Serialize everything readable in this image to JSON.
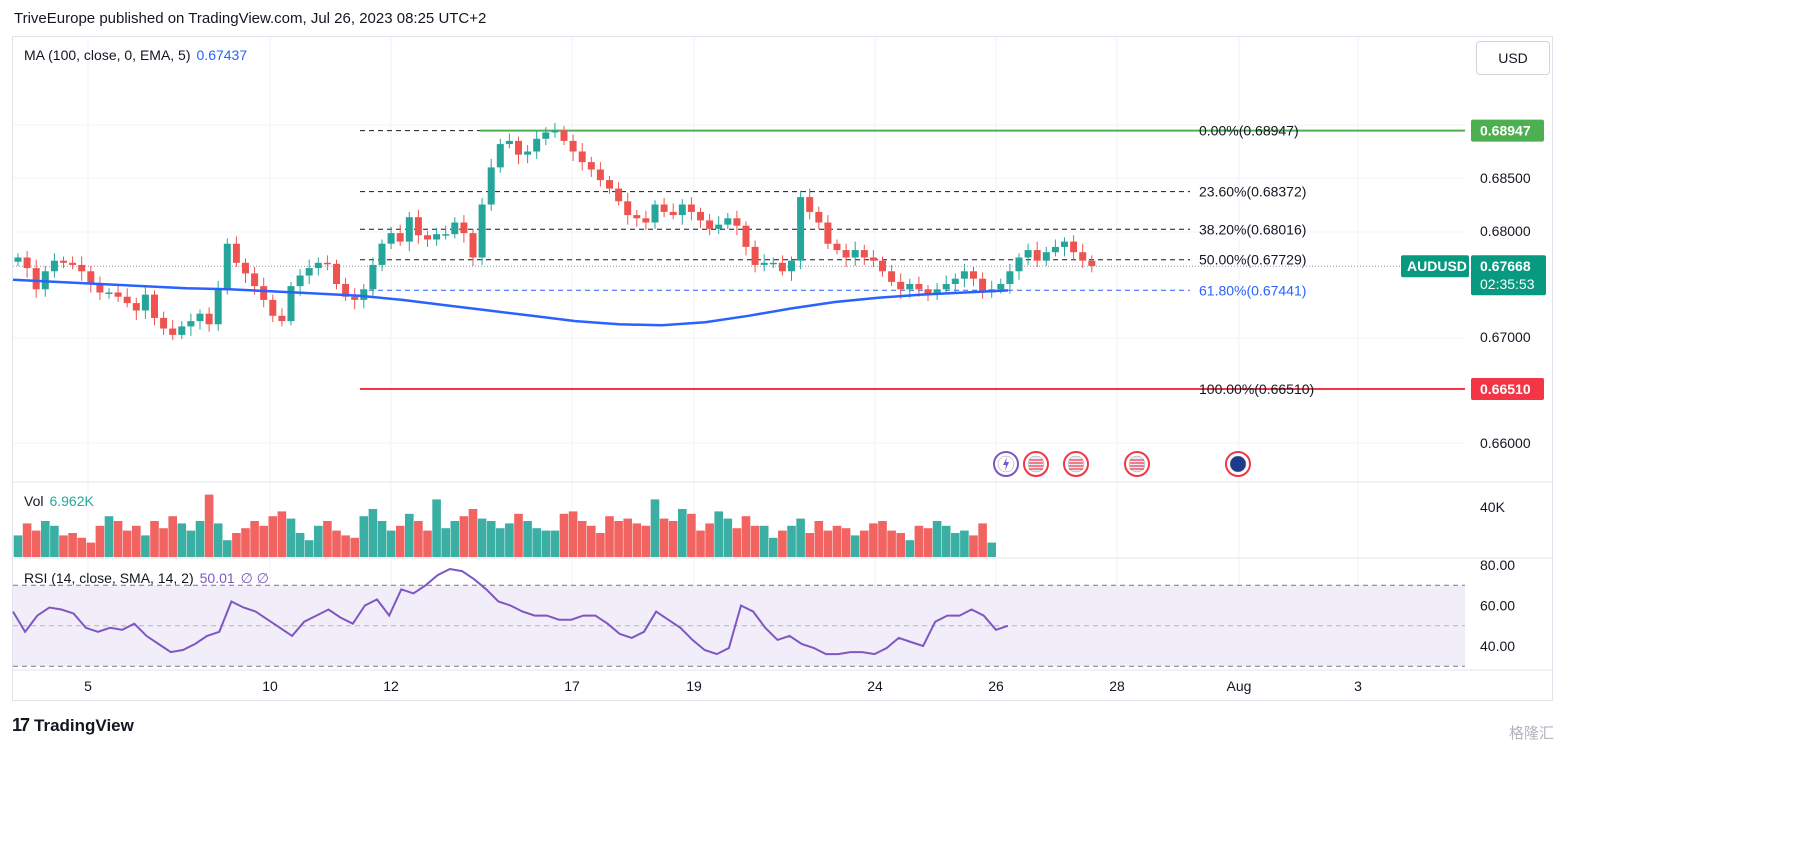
{
  "header": {
    "published": "TriveEurope published on TradingView.com, Jul 26, 2023 08:25 UTC+2"
  },
  "currency_button": "USD",
  "indicators": {
    "ma_label": "MA (100, close, 0, EMA, 5)",
    "ma_value": "0.67437",
    "vol_label": "Vol",
    "vol_value": "6.962K",
    "rsi_label": "RSI (14, close, SMA, 14, 2)",
    "rsi_value": "50.01",
    "rsi_extra": "∅  ∅"
  },
  "footer": {
    "brand": "TradingView",
    "watermark": "格隆汇"
  },
  "colors": {
    "up": "#26a69a",
    "down": "#ef5350",
    "ma": "#2962ff",
    "fib_top": "#4caf50",
    "fib_bottom": "#f23645",
    "rsi": "#7e57c2",
    "rsi_band": "#ede7f6",
    "price_tag": "#089981"
  },
  "chart_data": {
    "type": "candlestick",
    "symbol": "AUDUSD",
    "last_price": "0.67668",
    "countdown": "02:35:53",
    "price_axis_ticks": [
      "0.68500",
      "0.68000",
      "0.67000",
      "0.66000"
    ],
    "price_ylim": [
      0.6555,
      0.6935
    ],
    "x_tick_labels": [
      "5",
      "10",
      "12",
      "17",
      "19",
      "24",
      "26",
      "28",
      "Aug",
      "3"
    ],
    "fibonacci": [
      {
        "label": "0.00%(0.68947)",
        "price": 0.68947
      },
      {
        "label": "23.60%(0.68372)",
        "price": 0.68372
      },
      {
        "label": "38.20%(0.68016)",
        "price": 0.68016
      },
      {
        "label": "50.00%(0.67729)",
        "price": 0.67729
      },
      {
        "label": "61.80%(0.67441)",
        "price": 0.67441
      },
      {
        "label": "100.00%(0.66510)",
        "price": 0.6651
      }
    ],
    "fib_price_tags": [
      "0.68947",
      "0.66510"
    ],
    "candles_close": [
      0.6775,
      0.6765,
      0.6745,
      0.6762,
      0.6772,
      0.677,
      0.6768,
      0.6762,
      0.675,
      0.6742,
      0.6742,
      0.6738,
      0.6732,
      0.6725,
      0.674,
      0.6718,
      0.6708,
      0.6702,
      0.671,
      0.6715,
      0.6722,
      0.6712,
      0.6745,
      0.6788,
      0.677,
      0.676,
      0.6748,
      0.6735,
      0.672,
      0.6715,
      0.6748,
      0.6758,
      0.6765,
      0.677,
      0.6769,
      0.675,
      0.6738,
      0.6735,
      0.6745,
      0.6768,
      0.6788,
      0.6798,
      0.679,
      0.6813,
      0.6796,
      0.6792,
      0.6797,
      0.6797,
      0.6808,
      0.6798,
      0.6775,
      0.6825,
      0.686,
      0.6882,
      0.6885,
      0.6872,
      0.6875,
      0.6887,
      0.6893,
      0.6895,
      0.6885,
      0.6875,
      0.6865,
      0.6858,
      0.6848,
      0.684,
      0.6828,
      0.6815,
      0.6812,
      0.6808,
      0.6825,
      0.6818,
      0.6815,
      0.6825,
      0.6818,
      0.681,
      0.6802,
      0.6806,
      0.6812,
      0.6805,
      0.6785,
      0.6768,
      0.677,
      0.677,
      0.6762,
      0.6772,
      0.6832,
      0.6818,
      0.6808,
      0.6788,
      0.6782,
      0.6775,
      0.6782,
      0.6775,
      0.6772,
      0.6762,
      0.6752,
      0.6745,
      0.675,
      0.6745,
      0.674,
      0.6745,
      0.675,
      0.6755,
      0.6762,
      0.6755,
      0.6742,
      0.6745,
      0.675,
      0.6762,
      0.6775,
      0.6782,
      0.6772,
      0.678,
      0.6785,
      0.679,
      0.678,
      0.6772,
      0.6767
    ],
    "ma_series": [
      0.6754,
      0.6752,
      0.675,
      0.6748,
      0.6746,
      0.6745,
      0.6743,
      0.6741,
      0.6739,
      0.6735,
      0.673,
      0.6725,
      0.672,
      0.6715,
      0.6712,
      0.6711,
      0.6714,
      0.672,
      0.6727,
      0.6733,
      0.6737,
      0.674,
      0.6742,
      0.6744
    ],
    "volume": {
      "axis_tick": "40K",
      "values": [
        18,
        28,
        22,
        30,
        26,
        18,
        20,
        16,
        12,
        26,
        34,
        30,
        22,
        26,
        18,
        30,
        24,
        34,
        28,
        22,
        30,
        52,
        28,
        14,
        20,
        24,
        30,
        26,
        34,
        38,
        32,
        20,
        14,
        26,
        30,
        22,
        18,
        16,
        34,
        40,
        30,
        22,
        26,
        36,
        30,
        22,
        48,
        24,
        30,
        34,
        40,
        32,
        30,
        24,
        28,
        36,
        30,
        24,
        22,
        22,
        36,
        38,
        30,
        26,
        20,
        34,
        30,
        32,
        28,
        26,
        48,
        32,
        30,
        40,
        36,
        22,
        28,
        38,
        32,
        24,
        34,
        26,
        26,
        16,
        22,
        26,
        32,
        20,
        30,
        22,
        26,
        24,
        18,
        22,
        28,
        30,
        22,
        20,
        14,
        26,
        24,
        30,
        26,
        20,
        22,
        18,
        28,
        12
      ]
    },
    "rsi": {
      "axis_ticks": [
        "80.00",
        "60.00",
        "40.00"
      ],
      "upper_band": 70,
      "lower_band": 30,
      "mid": 50,
      "values": [
        57,
        47,
        55,
        59,
        58,
        56,
        49,
        47,
        49,
        48,
        51,
        45,
        41,
        37,
        38,
        41,
        45,
        47,
        62,
        59,
        57,
        53,
        49,
        45,
        52,
        55,
        58,
        54,
        51,
        60,
        63,
        55,
        68,
        66,
        70,
        75,
        78,
        77,
        73,
        68,
        62,
        60,
        57,
        55,
        55,
        53,
        53,
        55,
        55,
        51,
        46,
        44,
        47,
        57,
        53,
        49,
        43,
        38,
        36,
        39,
        60,
        57,
        49,
        43,
        45,
        41,
        39,
        36,
        36,
        37,
        37,
        36,
        39,
        44,
        42,
        40,
        52,
        55,
        55,
        58,
        55,
        48,
        50
      ]
    }
  }
}
